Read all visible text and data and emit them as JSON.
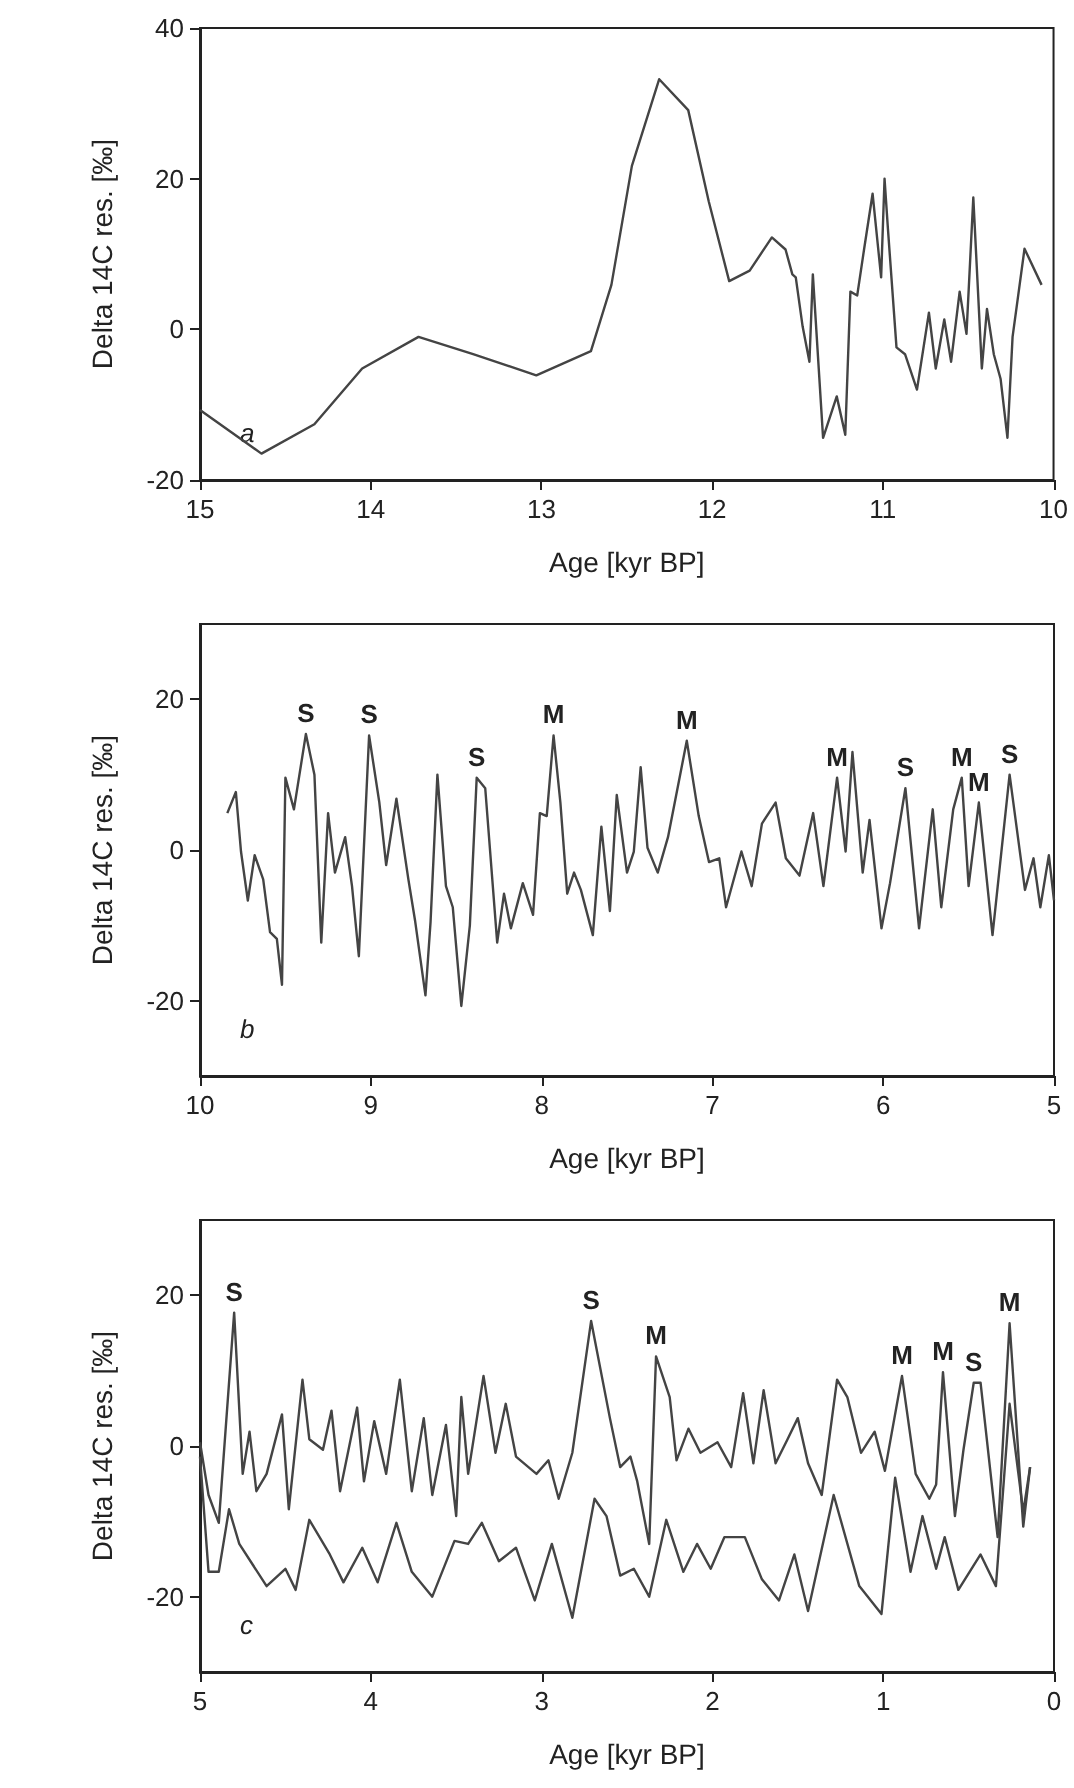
{
  "chart_data": [
    {
      "type": "line",
      "xlabel": "Age [kyr BP]",
      "ylabel": "Delta 14C res. [‰]",
      "xlim": [
        15,
        10
      ],
      "xticks": [
        15,
        14,
        13,
        12,
        11,
        10
      ],
      "ylim": [
        -20,
        40
      ],
      "yticks": [
        -20,
        0,
        20,
        40
      ],
      "grid": false,
      "marker": "none",
      "line_style": "solid",
      "annotations": [
        "a"
      ],
      "series": [
        {
          "color": "#444444",
          "x": [
            15.0,
            14.64,
            14.33,
            14.05,
            13.72,
            13.4,
            13.03,
            12.71,
            12.59,
            12.47,
            12.31,
            12.14,
            12.02,
            11.9,
            11.78,
            11.65,
            11.57,
            11.53,
            11.51,
            11.47,
            11.43,
            11.41,
            11.35,
            11.27,
            11.22,
            11.19,
            11.15,
            11.11,
            11.06,
            11.01,
            10.99,
            10.97,
            10.92,
            10.87,
            10.8,
            10.73,
            10.69,
            10.64,
            10.6,
            10.55,
            10.51,
            10.47,
            10.42,
            10.39,
            10.35,
            10.31,
            10.27,
            10.24,
            10.17,
            10.07
          ],
          "values": [
            -10.7,
            -16.5,
            -12.6,
            -5.2,
            -1.0,
            -3.3,
            -6.1,
            -2.9,
            5.9,
            21.7,
            33.2,
            29.1,
            17.0,
            6.4,
            7.8,
            12.2,
            10.6,
            7.3,
            6.9,
            0.4,
            -4.3,
            7.3,
            -14.4,
            -8.9,
            -14.0,
            5.0,
            4.5,
            10.6,
            18.0,
            6.9,
            20.0,
            13.3,
            -2.4,
            -3.3,
            -8.0,
            2.2,
            -5.2,
            1.3,
            -4.3,
            5.0,
            -0.6,
            17.5,
            -5.2,
            2.7,
            -3.3,
            -6.6,
            -14.4,
            -1.0,
            10.7,
            5.9
          ]
        }
      ]
    },
    {
      "type": "line",
      "xlabel": "Age [kyr BP]",
      "ylabel": "Delta 14C res. [‰]",
      "xlim": [
        10,
        5
      ],
      "xticks": [
        10,
        9,
        8,
        7,
        6,
        5
      ],
      "ylim": [
        -30,
        30
      ],
      "yticks": [
        -20,
        0,
        20
      ],
      "grid": false,
      "marker": "none",
      "line_style": "solid",
      "annotations": [
        "b",
        {
          "text": "S",
          "x": 9.38,
          "y": 15.4
        },
        {
          "text": "S",
          "x": 9.01,
          "y": 15.2
        },
        {
          "text": "S",
          "x": 8.38,
          "y": 9.6
        },
        {
          "text": "M",
          "x": 7.93,
          "y": 15.2
        },
        {
          "text": "M",
          "x": 7.15,
          "y": 14.5
        },
        {
          "text": "M",
          "x": 6.27,
          "y": 9.6
        },
        {
          "text": "S",
          "x": 5.87,
          "y": 8.2
        },
        {
          "text": "M",
          "x": 5.54,
          "y": 9.6
        },
        {
          "text": "M",
          "x": 5.44,
          "y": 6.3
        },
        {
          "text": "S",
          "x": 5.26,
          "y": 10.0
        }
      ],
      "series": [
        {
          "color": "#444444",
          "x": [
            9.84,
            9.79,
            9.76,
            9.72,
            9.68,
            9.63,
            9.59,
            9.55,
            9.52,
            9.5,
            9.45,
            9.38,
            9.33,
            9.29,
            9.25,
            9.21,
            9.15,
            9.11,
            9.07,
            9.01,
            8.95,
            8.91,
            8.85,
            8.78,
            8.74,
            8.68,
            8.65,
            8.61,
            8.56,
            8.52,
            8.47,
            8.42,
            8.38,
            8.33,
            8.26,
            8.22,
            8.18,
            8.11,
            8.05,
            8.01,
            7.97,
            7.93,
            7.89,
            7.85,
            7.81,
            7.77,
            7.7,
            7.65,
            7.6,
            7.56,
            7.5,
            7.46,
            7.42,
            7.38,
            7.32,
            7.26,
            7.15,
            7.08,
            7.02,
            6.96,
            6.92,
            6.83,
            6.77,
            6.71,
            6.63,
            6.57,
            6.49,
            6.41,
            6.35,
            6.27,
            6.22,
            6.18,
            6.12,
            6.08,
            6.01,
            5.96,
            5.87,
            5.79,
            5.71,
            5.66,
            5.59,
            5.54,
            5.5,
            5.44,
            5.36,
            5.26,
            5.17,
            5.12,
            5.08,
            5.03,
            5.0
          ],
          "values": [
            4.9,
            7.7,
            -0.2,
            -6.7,
            -0.7,
            -3.9,
            -10.9,
            -11.8,
            -17.9,
            9.6,
            5.4,
            15.4,
            10.0,
            -12.3,
            4.9,
            -3.0,
            1.7,
            -4.8,
            -14.1,
            15.2,
            6.3,
            -2.0,
            6.8,
            -3.9,
            -9.5,
            -19.3,
            -9.5,
            10.0,
            -4.8,
            -7.6,
            -20.7,
            -10.0,
            9.6,
            8.2,
            -12.3,
            -5.8,
            -10.4,
            -4.4,
            -8.6,
            4.9,
            4.5,
            15.2,
            6.3,
            -5.8,
            -3.0,
            -5.3,
            -11.3,
            3.1,
            -8.1,
            7.3,
            -3.0,
            -0.2,
            11.0,
            0.3,
            -3.0,
            1.7,
            14.5,
            4.5,
            -1.6,
            -1.1,
            -7.6,
            -0.2,
            -4.8,
            3.5,
            6.3,
            -1.1,
            -3.4,
            4.9,
            -4.8,
            9.6,
            -0.2,
            13.0,
            -3.0,
            4.0,
            -10.4,
            -4.4,
            8.2,
            -10.4,
            5.4,
            -7.6,
            5.4,
            9.6,
            -4.8,
            6.3,
            -11.3,
            10.0,
            -5.3,
            -1.1,
            -7.6,
            -0.7,
            -6.7
          ]
        }
      ]
    },
    {
      "type": "line",
      "xlabel": "Age [kyr BP]",
      "ylabel": "Delta 14C res. [‰]",
      "xlim": [
        5,
        0
      ],
      "xticks": [
        5,
        4,
        3,
        2,
        1,
        0
      ],
      "ylim": [
        -30,
        30
      ],
      "yticks": [
        -20,
        0,
        20
      ],
      "grid": false,
      "marker": "none",
      "line_style": "solid",
      "annotations": [
        "c",
        {
          "text": "S",
          "x": 4.8,
          "y": 17.7
        },
        {
          "text": "S",
          "x": 2.71,
          "y": 16.6
        },
        {
          "text": "M",
          "x": 2.33,
          "y": 11.9
        },
        {
          "text": "M",
          "x": 0.89,
          "y": 9.3
        },
        {
          "text": "M",
          "x": 0.65,
          "y": 9.8
        },
        {
          "text": "S",
          "x": 0.47,
          "y": 8.4
        },
        {
          "text": "M",
          "x": 0.26,
          "y": 16.3
        }
      ],
      "series": [
        {
          "color": "#444444",
          "x": [
            5.0,
            4.95,
            4.89,
            4.8,
            4.75,
            4.71,
            4.67,
            4.61,
            4.52,
            4.48,
            4.4,
            4.36,
            4.28,
            4.23,
            4.18,
            4.08,
            4.04,
            3.98,
            3.91,
            3.83,
            3.76,
            3.69,
            3.64,
            3.56,
            3.5,
            3.47,
            3.43,
            3.34,
            3.27,
            3.21,
            3.15,
            3.03,
            2.96,
            2.9,
            2.82,
            2.71,
            2.6,
            2.54,
            2.48,
            2.44,
            2.37,
            2.33,
            2.25,
            2.21,
            2.14,
            2.07,
            1.97,
            1.89,
            1.82,
            1.76,
            1.7,
            1.63,
            1.56,
            1.5,
            1.44,
            1.36,
            1.27,
            1.21,
            1.13,
            1.05,
            0.99,
            0.89,
            0.81,
            0.73,
            0.69,
            0.65,
            0.58,
            0.53,
            0.47,
            0.43,
            0.33,
            0.26,
            0.18,
            0.14
          ],
          "values": [
            0.5,
            -6.5,
            -10.2,
            17.7,
            -3.7,
            1.9,
            -6.0,
            -3.7,
            4.2,
            -8.4,
            8.8,
            0.9,
            -0.5,
            4.7,
            -6.0,
            5.1,
            -4.7,
            3.3,
            -3.7,
            8.8,
            -6.0,
            3.7,
            -6.5,
            2.8,
            -9.3,
            6.5,
            -3.7,
            9.3,
            -0.9,
            5.6,
            -1.4,
            -3.7,
            -1.9,
            -7.0,
            -0.9,
            16.6,
            3.7,
            -2.8,
            -1.4,
            -4.7,
            -13.0,
            11.9,
            6.5,
            -1.9,
            2.3,
            -0.9,
            0.5,
            -2.8,
            7.0,
            -2.3,
            7.4,
            -2.3,
            0.9,
            3.7,
            -2.3,
            -6.5,
            8.8,
            6.5,
            -0.9,
            1.9,
            -3.3,
            9.3,
            -3.7,
            -7.0,
            -5.1,
            9.8,
            -9.3,
            -0.5,
            8.4,
            8.4,
            -12.1,
            16.3,
            -10.7,
            -2.8
          ]
        },
        {
          "color": "#444444",
          "x": [
            5.0,
            4.95,
            4.89,
            4.83,
            4.77,
            4.69,
            4.61,
            4.5,
            4.44,
            4.36,
            4.24,
            4.16,
            4.05,
            3.96,
            3.85,
            3.76,
            3.64,
            3.51,
            3.43,
            3.35,
            3.25,
            3.15,
            3.04,
            2.94,
            2.82,
            2.69,
            2.62,
            2.54,
            2.46,
            2.37,
            2.27,
            2.17,
            2.09,
            2.01,
            1.93,
            1.81,
            1.71,
            1.61,
            1.52,
            1.44,
            1.29,
            1.14,
            1.01,
            0.93,
            0.84,
            0.77,
            0.69,
            0.64,
            0.56,
            0.43,
            0.34,
            0.26,
            0.18,
            0.14
          ],
          "values": [
            -1.4,
            -16.7,
            -16.7,
            -8.4,
            -13.0,
            -15.8,
            -18.6,
            -16.3,
            -19.1,
            -9.8,
            -14.4,
            -18.1,
            -13.5,
            -18.1,
            -10.2,
            -16.7,
            -20.0,
            -12.6,
            -13.0,
            -10.2,
            -15.3,
            -13.5,
            -20.5,
            -13.0,
            -22.8,
            -7.0,
            -9.3,
            -17.2,
            -16.3,
            -20.0,
            -9.8,
            -16.7,
            -13.0,
            -16.3,
            -12.1,
            -12.1,
            -17.7,
            -20.5,
            -14.4,
            -21.9,
            -6.5,
            -18.6,
            -22.3,
            -4.2,
            -16.7,
            -9.3,
            -16.3,
            -12.1,
            -19.1,
            -14.4,
            -18.6,
            5.6,
            -8.8,
            -2.8
          ]
        }
      ]
    }
  ]
}
